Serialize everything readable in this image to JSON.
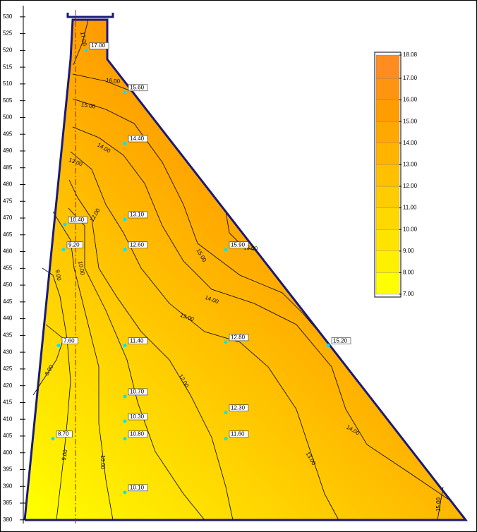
{
  "chart_data": {
    "type": "contour",
    "ylim": [
      376.8,
      534.6
    ],
    "yticks": [
      380,
      385,
      390,
      395,
      400,
      405,
      410,
      415,
      420,
      425,
      430,
      435,
      440,
      445,
      450,
      455,
      460,
      465,
      470,
      475,
      480,
      485,
      490,
      495,
      500,
      505,
      510,
      515,
      520,
      525,
      530
    ],
    "points": {
      "y": [
        520,
        507.5,
        492.3,
        469.6,
        460.6,
        460.6,
        468.1,
        460.6,
        432,
        432,
        433,
        432,
        416.8,
        409.4,
        404.2,
        412,
        404.2,
        404.2,
        388.2
      ],
      "values": [
        17,
        15.6,
        14.4,
        13.1,
        12.6,
        15.9,
        10.4,
        9.2,
        7.6,
        11.4,
        12.8,
        15.2,
        10.7,
        10.3,
        10.8,
        12.3,
        11.6,
        8.7,
        10.1
      ],
      "value_labels": [
        "17.00",
        "15.60",
        "14.40",
        "13.10",
        "12.60",
        "15.90",
        "10.40",
        "9.20",
        "7.60",
        "11.40",
        "12.80",
        "15.20",
        "10.70",
        "10.30",
        "10.80",
        "12.30",
        "11.60",
        "8.70",
        "10.10"
      ]
    },
    "contour_labels": [
      "17.00",
      "16.00",
      "15.00",
      "14.00",
      "13.00",
      "12.00",
      "15.00",
      "16.00",
      "14.00",
      "13.00",
      "12.00",
      "10.00",
      "9.00",
      "8.00",
      "10.00",
      "9.00",
      "13.00",
      "14.00",
      "15.00"
    ],
    "colorbar": {
      "lim": [
        7,
        18.08
      ],
      "ticks": [
        {
          "value": 7,
          "label": "7.00"
        },
        {
          "value": 8,
          "label": "8.00"
        },
        {
          "value": 9,
          "label": "9.00"
        },
        {
          "value": 10,
          "label": "10.00"
        },
        {
          "value": 11,
          "label": "11.00"
        },
        {
          "value": 12,
          "label": "12.00"
        },
        {
          "value": 13,
          "label": "13.00"
        },
        {
          "value": 14,
          "label": "14.00"
        },
        {
          "value": 15,
          "label": "15.00"
        },
        {
          "value": 16,
          "label": "16.00"
        },
        {
          "value": 17,
          "label": "17.00"
        },
        18.08
      ],
      "colors": [
        "#ffff00",
        "#fff000",
        "#ffe400",
        "#ffd800",
        "#ffcc00",
        "#ffc000",
        "#ffb400",
        "#ffa800",
        "#ff9c00",
        "#ff9410",
        "#ff8c20"
      ]
    }
  }
}
